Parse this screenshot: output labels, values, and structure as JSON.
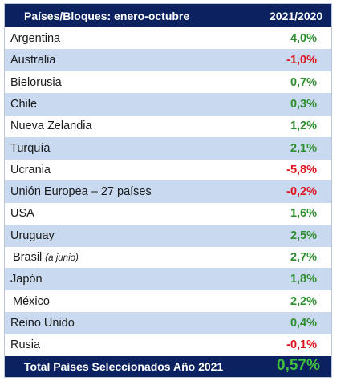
{
  "chart_data": {
    "type": "table",
    "columns": [
      "Países/Bloques: enero-octubre",
      "2021/2020"
    ],
    "rows": [
      {
        "name": "Argentina",
        "note": "",
        "value_label": "4,0%",
        "value": 4.0
      },
      {
        "name": "Australia",
        "note": "",
        "value_label": "-1,0%",
        "value": -1.0
      },
      {
        "name": "Bielorusia",
        "note": "",
        "value_label": "0,7%",
        "value": 0.7
      },
      {
        "name": "Chile",
        "note": "",
        "value_label": "0,3%",
        "value": 0.3
      },
      {
        "name": "Nueva Zelandia",
        "note": "",
        "value_label": "1,2%",
        "value": 1.2
      },
      {
        "name": "Turquía",
        "note": "",
        "value_label": "2,1%",
        "value": 2.1
      },
      {
        "name": "Ucrania",
        "note": "",
        "value_label": "-5,8%",
        "value": -5.8
      },
      {
        "name": "Unión Europea – 27 países",
        "note": "",
        "value_label": "-0,2%",
        "value": -0.2
      },
      {
        "name": "USA",
        "note": "",
        "value_label": "1,6%",
        "value": 1.6
      },
      {
        "name": "Uruguay",
        "note": "",
        "value_label": "2,5%",
        "value": 2.5
      },
      {
        "name": "Brasil",
        "note": "(a junio)",
        "value_label": "2,7%",
        "value": 2.7
      },
      {
        "name": "Japón",
        "note": "",
        "value_label": "1,8%",
        "value": 1.8
      },
      {
        "name": "México",
        "note": "",
        "value_label": "2,2%",
        "value": 2.2
      },
      {
        "name": "Reino Unido",
        "note": "",
        "value_label": "0,4%",
        "value": 0.4
      },
      {
        "name": "Rusia",
        "note": "",
        "value_label": "-0,1%",
        "value": -0.1
      }
    ],
    "total": {
      "label": "Total Países Seleccionados Año 2021",
      "value_label": "0,57%",
      "value": 0.57
    }
  },
  "colors": {
    "header_bg": "#0b2160",
    "row_alt_bg": "#c8d9f0",
    "positive": "#2e8f2e",
    "negative": "#e0141e",
    "total_value": "#3fbf3f"
  }
}
